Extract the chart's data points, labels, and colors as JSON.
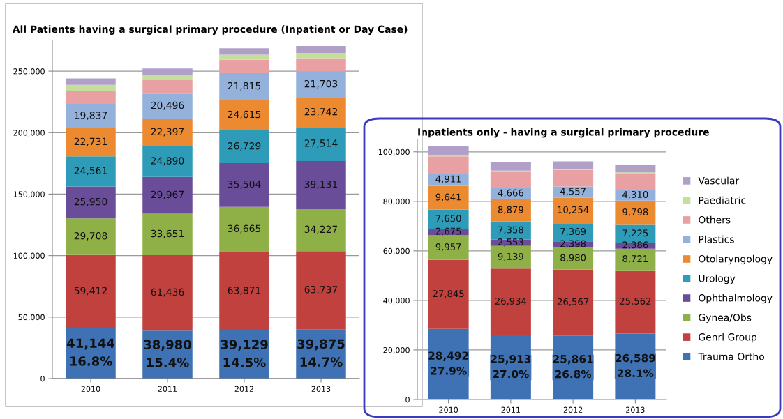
{
  "chart_data": [
    {
      "type": "bar",
      "stacked": true,
      "title": "All Patients having a surgical primary procedure (Inpatient or Day Case)",
      "categories": [
        "2010",
        "2011",
        "2012",
        "2013"
      ],
      "ylim": [
        0,
        275000
      ],
      "yticks": [
        {
          "value": 0,
          "label": "0"
        },
        {
          "value": 50000,
          "label": "50,000"
        },
        {
          "value": 100000,
          "label": "100,000"
        },
        {
          "value": 150000,
          "label": "150,000"
        },
        {
          "value": 200000,
          "label": "200,000"
        },
        {
          "value": 250000,
          "label": "250,000"
        }
      ],
      "grid": "y",
      "legend": false,
      "series": [
        {
          "color": "#3f72b4",
          "values": [
            41144,
            38980,
            39129,
            39875
          ],
          "value_labels": [
            "41,144\n16.8%",
            "38,980\n15.4%",
            "39,129\n14.5%",
            "39,875\n14.7%"
          ]
        },
        {
          "color": "#c0413d",
          "values": [
            59412,
            61436,
            63871,
            63737
          ],
          "value_labels": [
            "59,412",
            "61,436",
            "63,871",
            "63,737"
          ]
        },
        {
          "color": "#8fb046",
          "values": [
            29708,
            33651,
            36665,
            34227
          ],
          "value_labels": [
            "29,708",
            "33,651",
            "36,665",
            "34,227"
          ]
        },
        {
          "color": "#6a4d98",
          "values": [
            25950,
            29967,
            35504,
            39131
          ],
          "value_labels": [
            "25,950",
            "29,967",
            "35,504",
            "39,131"
          ]
        },
        {
          "color": "#2e9cb8",
          "values": [
            24561,
            24890,
            26729,
            27514
          ],
          "value_labels": [
            "24,561",
            "24,890",
            "26,729",
            "27,514"
          ]
        },
        {
          "color": "#ec8a31",
          "values": [
            22731,
            22397,
            24615,
            23742
          ],
          "value_labels": [
            "22,731",
            "22,397",
            "24,615",
            "23,742"
          ]
        },
        {
          "color": "#93b1db",
          "values": [
            19837,
            20496,
            21815,
            21703
          ],
          "value_labels": [
            "19,837",
            "20,496",
            "21,815",
            "21,703"
          ]
        },
        {
          "color": "#e8a0a2",
          "values": [
            10900,
            10800,
            11000,
            10600
          ]
        },
        {
          "color": "#c4df9a",
          "values": [
            4600,
            4400,
            4000,
            4200
          ]
        },
        {
          "color": "#b0a0c8",
          "values": [
            5200,
            5100,
            5300,
            5700
          ]
        }
      ]
    },
    {
      "type": "bar",
      "stacked": true,
      "title": "Inpatients only - having a surgical primary procedure",
      "categories": [
        "2010",
        "2011",
        "2012",
        "2013"
      ],
      "ylim": [
        0,
        105000
      ],
      "yticks": [
        {
          "value": 0,
          "label": "0"
        },
        {
          "value": 20000,
          "label": "20,000"
        },
        {
          "value": 40000,
          "label": "40,000"
        },
        {
          "value": 60000,
          "label": "60,000"
        },
        {
          "value": 80000,
          "label": "80,000"
        },
        {
          "value": 100000,
          "label": "100,000"
        }
      ],
      "grid": "y",
      "legend": "right",
      "series": [
        {
          "name": "Trauma Ortho",
          "color": "#3f72b4",
          "values": [
            28492,
            25913,
            25861,
            26589
          ],
          "value_labels": [
            "28,492\n27.9%",
            "25,913\n27.0%",
            "25,861\n26.8%",
            "26,589\n28.1%"
          ]
        },
        {
          "name": "Genrl Group",
          "color": "#c0413d",
          "values": [
            27845,
            26934,
            26567,
            25562
          ],
          "value_labels": [
            "27,845",
            "26,934",
            "26,567",
            "25,562"
          ]
        },
        {
          "name": "Gynea/Obs",
          "color": "#8fb046",
          "values": [
            9957,
            9139,
            8980,
            8721
          ],
          "value_labels": [
            "9,957",
            "9,139",
            "8,980",
            "8,721"
          ]
        },
        {
          "name": "Ophthalmology",
          "color": "#6a4d98",
          "values": [
            2675,
            2553,
            2398,
            2386
          ],
          "value_labels": [
            "2,675",
            "2,553",
            "2,398",
            "2,386"
          ]
        },
        {
          "name": "Urology",
          "color": "#2e9cb8",
          "values": [
            7650,
            7358,
            7369,
            7225
          ],
          "value_labels": [
            "7,650",
            "7,358",
            "7,369",
            "7,225"
          ]
        },
        {
          "name": "Otolaryngology",
          "color": "#ec8a31",
          "values": [
            9641,
            8879,
            10254,
            9798
          ],
          "value_labels": [
            "9,641",
            "8,879",
            "10,254",
            "9,798"
          ]
        },
        {
          "name": "Plastics",
          "color": "#93b1db",
          "values": [
            4911,
            4666,
            4557,
            4310
          ],
          "value_labels": [
            "4,911",
            "4,666",
            "4,557",
            "4,310"
          ]
        },
        {
          "name": "Others",
          "color": "#e8a0a2",
          "values": [
            7000,
            6500,
            6700,
            6600
          ]
        },
        {
          "name": "Paediatric",
          "color": "#c4df9a",
          "values": [
            500,
            450,
            450,
            500
          ]
        },
        {
          "name": "Vascular",
          "color": "#b0a0c8",
          "values": [
            3500,
            3400,
            3000,
            3100
          ]
        }
      ]
    }
  ]
}
